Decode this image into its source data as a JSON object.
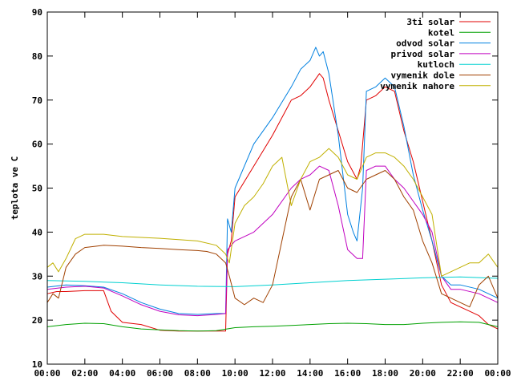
{
  "chart_data": {
    "type": "line",
    "title": "",
    "xlabel": "",
    "ylabel": "teplota ve C",
    "xlim": [
      0,
      24
    ],
    "ylim": [
      10,
      90
    ],
    "x_ticks": [
      {
        "value": 0,
        "label": "00:00"
      },
      {
        "value": 2,
        "label": "02:00"
      },
      {
        "value": 4,
        "label": "04:00"
      },
      {
        "value": 6,
        "label": "06:00"
      },
      {
        "value": 8,
        "label": "08:00"
      },
      {
        "value": 10,
        "label": "10:00"
      },
      {
        "value": 12,
        "label": "12:00"
      },
      {
        "value": 14,
        "label": "14:00"
      },
      {
        "value": 16,
        "label": "16:00"
      },
      {
        "value": 18,
        "label": "18:00"
      },
      {
        "value": 20,
        "label": "20:00"
      },
      {
        "value": 22,
        "label": "22:00"
      },
      {
        "value": 24,
        "label": "00:00"
      }
    ],
    "y_ticks": [
      {
        "value": 10,
        "label": "10"
      },
      {
        "value": 20,
        "label": "20"
      },
      {
        "value": 30,
        "label": "30"
      },
      {
        "value": 40,
        "label": "40"
      },
      {
        "value": 50,
        "label": "50"
      },
      {
        "value": 60,
        "label": "60"
      },
      {
        "value": 70,
        "label": "70"
      },
      {
        "value": 80,
        "label": "80"
      },
      {
        "value": 90,
        "label": "90"
      }
    ],
    "grid": false,
    "legend_position": "top-right",
    "series": [
      {
        "name": "3ti solar",
        "color": "#e00000",
        "x": [
          0,
          0.5,
          1,
          2,
          3,
          3.4,
          4,
          5,
          6,
          7,
          8,
          9,
          9.5,
          9.6,
          9.8,
          10,
          11,
          12,
          13,
          13.5,
          14,
          14.5,
          14.7,
          15,
          15.5,
          16,
          16.5,
          16.7,
          17,
          17.5,
          18,
          18.5,
          19,
          19.5,
          20,
          20.5,
          21,
          21.5,
          22,
          22.5,
          23,
          23.5,
          24
        ],
        "y": [
          26,
          26.5,
          26.5,
          26.7,
          26.7,
          22,
          19.5,
          19,
          17.7,
          17.5,
          17.5,
          17.5,
          17.5,
          35,
          38,
          48,
          55,
          62,
          70,
          71,
          73,
          76,
          75,
          70,
          63,
          56,
          52,
          55,
          70,
          71,
          73,
          72,
          63,
          56,
          47,
          38,
          28,
          24,
          23,
          22,
          21,
          19,
          18
        ]
      },
      {
        "name": "kotel",
        "color": "#00a000",
        "x": [
          0,
          1,
          2,
          3,
          4,
          5,
          6,
          7,
          8,
          9,
          10,
          11,
          12,
          13,
          14,
          15,
          16,
          17,
          18,
          19,
          20,
          21,
          22,
          23,
          24
        ],
        "y": [
          18.5,
          19,
          19.3,
          19.2,
          18.5,
          18,
          17.8,
          17.6,
          17.5,
          17.6,
          18.3,
          18.5,
          18.6,
          18.8,
          19,
          19.2,
          19.3,
          19.2,
          19,
          19,
          19.3,
          19.5,
          19.6,
          19.5,
          18.5
        ]
      },
      {
        "name": "odvod solar",
        "color": "#0080e0",
        "x": [
          0,
          1,
          2,
          3,
          4,
          5,
          6,
          7,
          8,
          9,
          9.5,
          9.6,
          9.8,
          10,
          11,
          12,
          13,
          13.5,
          14,
          14.3,
          14.5,
          14.7,
          15,
          15.5,
          16,
          16.3,
          16.5,
          16.8,
          17,
          17.5,
          18,
          18.5,
          19,
          19.5,
          20,
          20.5,
          21,
          21.5,
          22,
          23,
          24
        ],
        "y": [
          27.5,
          28,
          27.8,
          27.5,
          26,
          24,
          22.5,
          21.5,
          21.3,
          21.5,
          21.5,
          43,
          40,
          50,
          60,
          66,
          73,
          77,
          79,
          82,
          80,
          81,
          76,
          62,
          44,
          40,
          38,
          50,
          72,
          73,
          75,
          73,
          64,
          53,
          45,
          38,
          30,
          28,
          28,
          27,
          25
        ]
      },
      {
        "name": "privod solar",
        "color": "#c000c0",
        "x": [
          0,
          1,
          2,
          3,
          4,
          5,
          6,
          7,
          8,
          9,
          9.5,
          9.6,
          10,
          11,
          12,
          13,
          13.5,
          14,
          14.5,
          15,
          15.5,
          16,
          16.5,
          16.8,
          17,
          17.5,
          18,
          18.5,
          19,
          19.5,
          20,
          20.5,
          21,
          21.5,
          22,
          23,
          24
        ],
        "y": [
          27,
          27.5,
          27.7,
          27.3,
          25.5,
          23.5,
          22,
          21.2,
          21,
          21.3,
          21.5,
          36,
          38,
          40,
          44,
          50,
          52,
          53,
          55,
          54,
          46,
          36,
          34,
          34,
          54,
          55,
          55,
          52,
          50,
          47,
          44,
          40,
          30,
          27,
          27,
          26,
          24
        ]
      },
      {
        "name": "kutloch",
        "color": "#00d0d0",
        "x": [
          0,
          2,
          4,
          6,
          8,
          10,
          12,
          14,
          16,
          18,
          20,
          22,
          24
        ],
        "y": [
          29,
          28.8,
          28.5,
          28,
          27.7,
          27.6,
          28,
          28.5,
          29,
          29.3,
          29.6,
          29.8,
          29.5
        ]
      },
      {
        "name": "vymenik dole",
        "color": "#a04000",
        "x": [
          0,
          0.3,
          0.6,
          1,
          1.5,
          2,
          3,
          4,
          5,
          6,
          7,
          8,
          8.5,
          9,
          9.5,
          9.7,
          10,
          10.5,
          11,
          11.5,
          12,
          12.5,
          13,
          13.5,
          14,
          14.5,
          15,
          15.5,
          16,
          16.5,
          17,
          17.5,
          18,
          18.5,
          19,
          19.5,
          20,
          20.5,
          21,
          21.5,
          22,
          22.5,
          23,
          23.5,
          24
        ],
        "y": [
          24,
          26,
          25,
          32,
          35,
          36.5,
          37,
          36.8,
          36.5,
          36.3,
          36,
          35.8,
          35.6,
          35,
          33,
          30,
          25,
          23.5,
          25,
          24,
          28,
          38,
          48,
          52,
          45,
          52,
          53,
          54,
          50,
          49,
          52,
          53,
          54,
          52,
          48,
          45,
          38,
          33,
          26,
          25,
          24,
          23,
          28,
          30,
          25
        ]
      },
      {
        "name": "vymenik nahore",
        "color": "#c0b000",
        "x": [
          0,
          0.3,
          0.6,
          1,
          1.5,
          2,
          3,
          4,
          5,
          6,
          7,
          8,
          9,
          9.5,
          9.7,
          10,
          10.5,
          11,
          11.5,
          12,
          12.5,
          13,
          13.5,
          14,
          14.5,
          15,
          15.5,
          16,
          16.5,
          17,
          17.5,
          18,
          18.5,
          19,
          19.5,
          20,
          20.5,
          21,
          21.5,
          22,
          22.5,
          23,
          23.5,
          24
        ],
        "y": [
          32,
          33,
          31,
          34,
          38.5,
          39.5,
          39.5,
          39,
          38.8,
          38.6,
          38.3,
          38,
          37,
          35,
          33,
          42,
          46,
          48,
          51,
          55,
          57,
          46,
          52,
          56,
          57,
          59,
          57,
          53,
          52,
          57,
          58,
          58,
          57,
          55,
          52,
          48,
          44,
          30,
          31,
          32,
          33,
          33,
          35,
          32
        ]
      }
    ]
  }
}
